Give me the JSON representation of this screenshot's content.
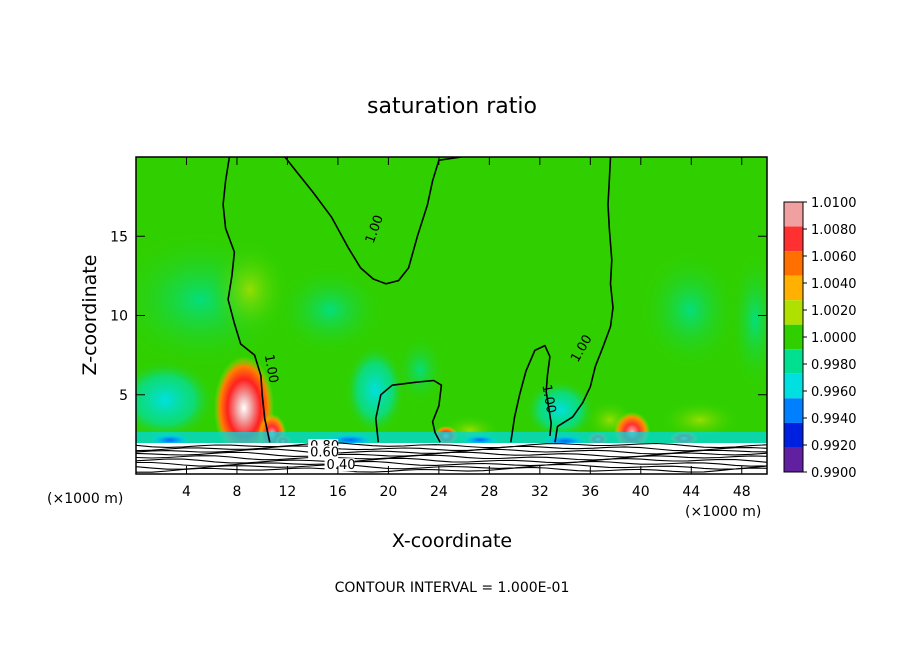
{
  "chart_data": {
    "type": "heatmap",
    "title": "saturation ratio",
    "xlabel": "X-coordinate",
    "ylabel": "Z-coordinate",
    "x_unit_left": "(×1000 m)",
    "x_unit_right": "(×1000 m)",
    "footer": "CONTOUR INTERVAL = 1.000E-01",
    "xlim": [
      0,
      50
    ],
    "ylim": [
      0,
      20
    ],
    "x_ticks": [
      4,
      8,
      12,
      16,
      20,
      24,
      28,
      32,
      36,
      40,
      44,
      48
    ],
    "x_tick_labels": [
      "4",
      "8",
      "12",
      "16",
      "20",
      "24",
      "28",
      "32",
      "36",
      "40",
      "44",
      "48"
    ],
    "y_ticks": [
      5,
      10,
      15
    ],
    "y_tick_labels": [
      "5",
      "10",
      "15"
    ],
    "colorbar": {
      "min": 0.99,
      "max": 1.01,
      "labels": [
        "1.0100",
        "1.0080",
        "1.0060",
        "1.0040",
        "1.0020",
        "1.0000",
        "0.9980",
        "0.9960",
        "0.9940",
        "0.9920",
        "0.9900"
      ],
      "colors": [
        "#f0a0a0",
        "#ff3030",
        "#ff7000",
        "#ffb000",
        "#b0e000",
        "#30d000",
        "#00e090",
        "#00e0e0",
        "#0080ff",
        "#0020e0",
        "#6020a0"
      ]
    },
    "contour_labels": [
      {
        "text": "1.00",
        "x": 18.8,
        "z": 14.5,
        "rotate": -70
      },
      {
        "text": "1.00",
        "x": 10.2,
        "z": 7.5,
        "rotate": 80
      },
      {
        "text": "1.00",
        "x": 32.2,
        "z": 5.6,
        "rotate": 80
      },
      {
        "text": "1.00",
        "x": 35.0,
        "z": 7.0,
        "rotate": -60
      },
      {
        "text": "0.80",
        "x": 13.8,
        "z": 1.5,
        "rotate": 0
      },
      {
        "text": "0.60",
        "x": 13.8,
        "z": 1.1,
        "rotate": 0
      },
      {
        "text": "0.40",
        "x": 15.1,
        "z": 0.3,
        "rotate": 0
      }
    ],
    "contours_100": [
      [
        [
          10.6,
          2.0
        ],
        [
          10.2,
          3.5
        ],
        [
          10.0,
          5.0
        ],
        [
          9.9,
          6.2
        ],
        [
          9.4,
          7.5
        ],
        [
          8.3,
          8.2
        ],
        [
          7.8,
          9.5
        ],
        [
          7.3,
          11.0
        ],
        [
          7.6,
          12.5
        ],
        [
          7.8,
          14.0
        ],
        [
          7.1,
          15.5
        ],
        [
          6.9,
          17.0
        ],
        [
          7.1,
          18.5
        ],
        [
          7.4,
          20.0
        ]
      ],
      [
        [
          11.8,
          20.0
        ],
        [
          12.8,
          19.0
        ],
        [
          14.0,
          17.8
        ],
        [
          15.5,
          16.2
        ],
        [
          16.8,
          14.3
        ],
        [
          17.8,
          13.0
        ],
        [
          18.8,
          12.3
        ],
        [
          19.8,
          12.0
        ],
        [
          20.8,
          12.2
        ],
        [
          21.6,
          13.0
        ],
        [
          22.3,
          15.0
        ],
        [
          23.1,
          17.0
        ],
        [
          23.5,
          18.5
        ],
        [
          24.0,
          19.8
        ],
        [
          25.8,
          20.0
        ]
      ],
      [
        [
          19.2,
          2.0
        ],
        [
          19.0,
          3.5
        ],
        [
          19.4,
          5.0
        ],
        [
          20.3,
          5.6
        ],
        [
          22.3,
          5.8
        ],
        [
          23.6,
          5.9
        ],
        [
          24.2,
          5.6
        ],
        [
          24.0,
          4.3
        ],
        [
          23.5,
          3.3
        ],
        [
          23.7,
          2.6
        ],
        [
          24.1,
          2.0
        ]
      ],
      [
        [
          29.7,
          2.0
        ],
        [
          30.0,
          3.6
        ],
        [
          30.4,
          5.0
        ],
        [
          30.9,
          6.5
        ],
        [
          31.6,
          7.8
        ],
        [
          32.4,
          8.1
        ],
        [
          32.8,
          7.4
        ],
        [
          32.6,
          6.2
        ],
        [
          32.5,
          5.2
        ],
        [
          32.7,
          4.2
        ],
        [
          32.9,
          3.2
        ],
        [
          32.8,
          2.4
        ]
      ],
      [
        [
          33.2,
          2.0
        ],
        [
          33.4,
          3.0
        ],
        [
          34.6,
          3.6
        ],
        [
          35.4,
          4.5
        ],
        [
          36.0,
          5.5
        ],
        [
          36.4,
          6.8
        ],
        [
          37.0,
          8.0
        ],
        [
          37.6,
          9.3
        ],
        [
          37.8,
          10.5
        ],
        [
          37.6,
          12.0
        ],
        [
          37.7,
          13.5
        ],
        [
          37.5,
          15.5
        ],
        [
          37.4,
          17.0
        ],
        [
          37.5,
          18.5
        ],
        [
          37.6,
          20.0
        ]
      ]
    ]
  }
}
